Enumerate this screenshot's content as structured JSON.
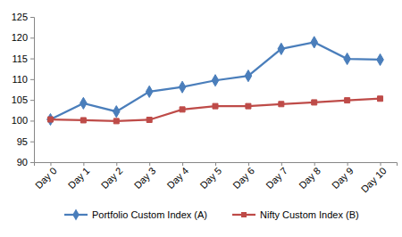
{
  "chart_data": {
    "type": "line",
    "categories": [
      "Day 0",
      "Day 1",
      "Day 2",
      "Day 3",
      "Day 4",
      "Day 5",
      "Day 6",
      "Day 7",
      "Day 8",
      "Day 9",
      "Day 10"
    ],
    "series": [
      {
        "name": "Portfolio Custom Index (A)",
        "color": "#4a7ebb",
        "marker": "diamond",
        "line_style": "solid",
        "values": [
          100.3,
          104.2,
          102.2,
          107.0,
          108.1,
          109.7,
          110.8,
          117.3,
          118.9,
          114.9,
          114.7
        ]
      },
      {
        "name": "Nifty Custom Index (B)",
        "color": "#be4b48",
        "marker": "square",
        "line_style": "solid",
        "values": [
          100.3,
          100.1,
          99.9,
          100.2,
          102.7,
          103.5,
          103.5,
          104.0,
          104.4,
          104.9,
          105.3
        ]
      }
    ],
    "ylim": [
      90,
      125
    ],
    "yticks": [
      90,
      95,
      100,
      105,
      110,
      115,
      120,
      125
    ],
    "grid": false,
    "legend": "bottom"
  }
}
